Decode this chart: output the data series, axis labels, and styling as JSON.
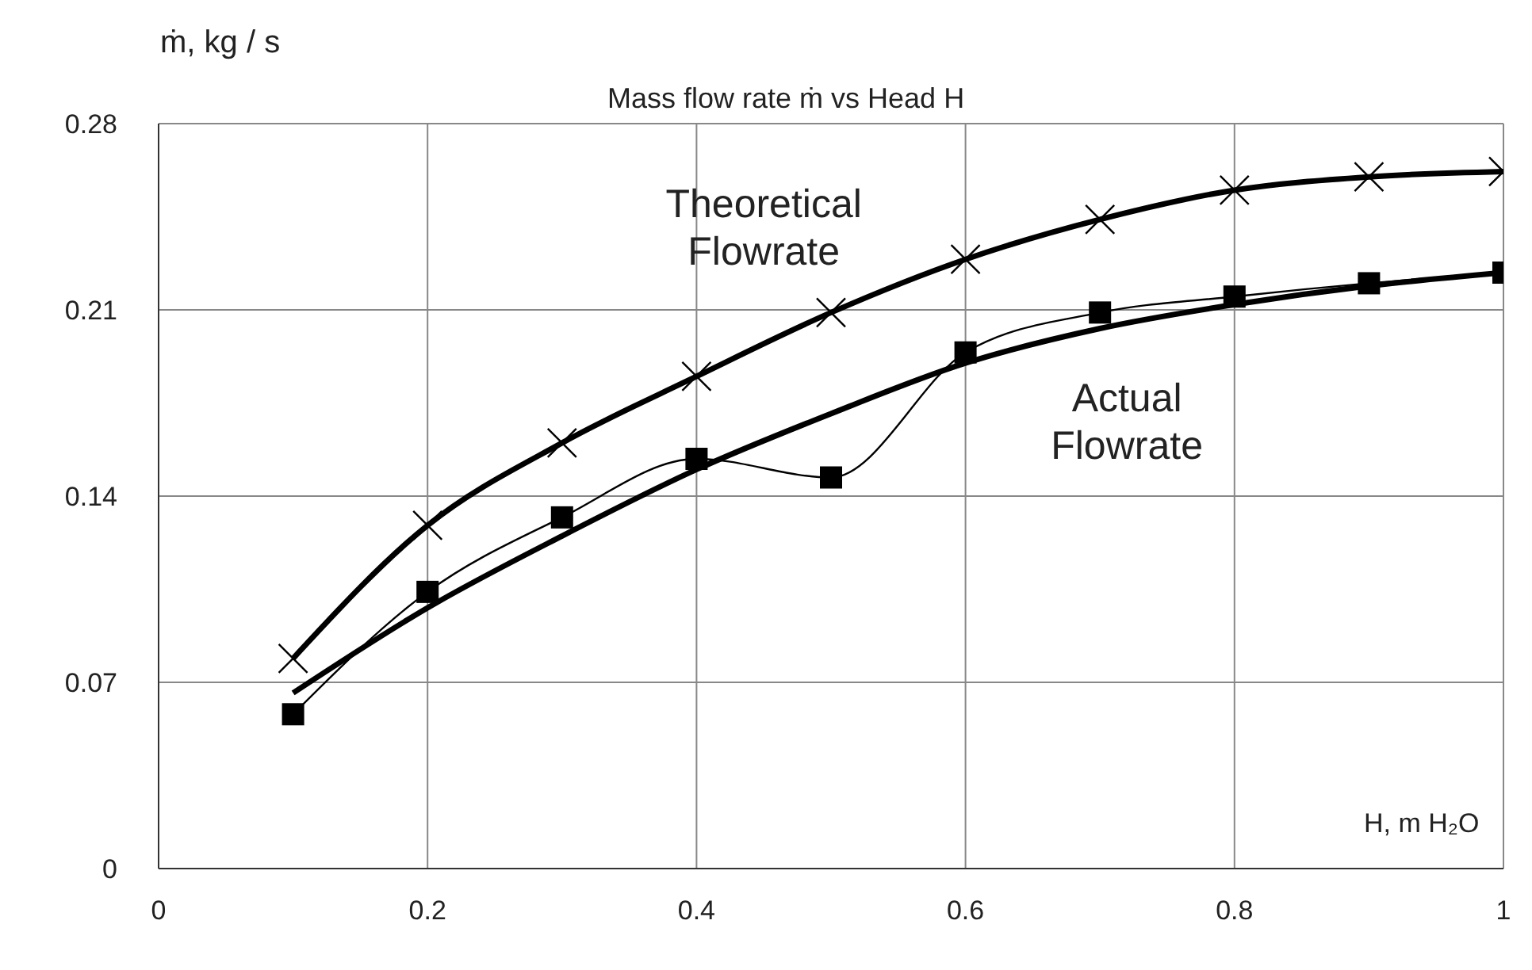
{
  "chart_data": {
    "type": "line",
    "title": "Mass flow rate ṁ vs Head H",
    "xlabel": "H, m H₂O",
    "ylabel": "ṁ, kg / s",
    "x": [
      0.1,
      0.2,
      0.3,
      0.4,
      0.5,
      0.6,
      0.7,
      0.8,
      0.9,
      1.0
    ],
    "series": [
      {
        "name": "Theoretical Flowrate",
        "color": "#000000",
        "marker": "cross",
        "values": [
          0.079,
          0.129,
          0.16,
          0.185,
          0.209,
          0.229,
          0.244,
          0.255,
          0.26,
          0.262
        ]
      },
      {
        "name": "Actual Flowrate",
        "color": "#000000",
        "marker": "square",
        "values": [
          0.058,
          0.104,
          0.132,
          0.154,
          0.147,
          0.194,
          0.209,
          0.215,
          0.22,
          0.224
        ]
      },
      {
        "color": "#000000",
        "marker": "none",
        "values": [
          0.066,
          0.098,
          0.125,
          0.15,
          0.171,
          0.19,
          0.203,
          0.212,
          0.219,
          0.224
        ]
      }
    ],
    "xlim": [
      0,
      1
    ],
    "xticks": [
      0,
      0.2,
      0.4,
      0.6,
      0.8,
      1
    ],
    "ylim": [
      0,
      0.28
    ],
    "yticks": [
      0,
      0.07,
      0.14,
      0.21,
      0.28
    ],
    "grid": true,
    "legend": false
  }
}
